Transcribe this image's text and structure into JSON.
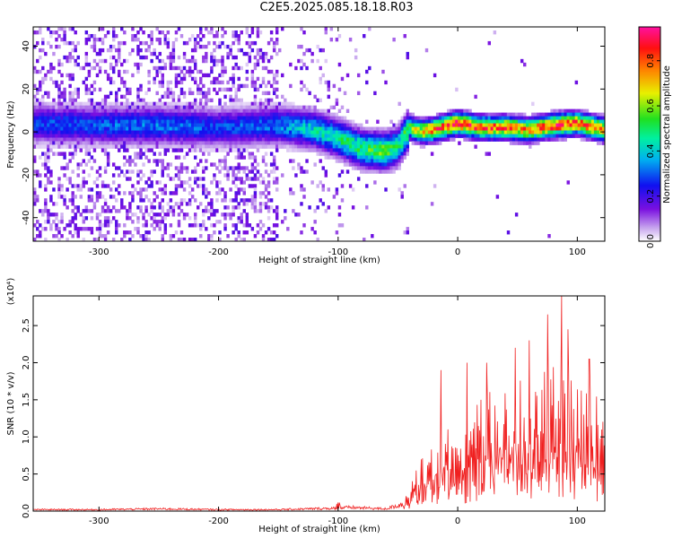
{
  "figure": {
    "title": "C2E5.2025.085.18.18.R03"
  },
  "colors": {
    "snr_line": "#f02020",
    "axis": "#000000"
  },
  "chart_data": [
    {
      "type": "heatmap",
      "xlabel": "Height of straight line (km)",
      "ylabel": "Frequency (Hz)",
      "xlim": [
        -355,
        123
      ],
      "ylim": [
        -51,
        49
      ],
      "xticks": [
        -300,
        -200,
        -100,
        0,
        100
      ],
      "yticks": [
        -40,
        -20,
        0,
        20,
        40
      ],
      "colorbar": {
        "label": "Normalized spectral amplitude",
        "range": [
          0,
          0.95
        ],
        "ticks": [
          0.0,
          0.2,
          0.4,
          0.6,
          0.8
        ],
        "colormap": "rainbow (white-purple-blue-cyan-green-yellow-red-magenta)"
      },
      "ridge": {
        "x": [
          -355,
          -300,
          -250,
          -200,
          -150,
          -120,
          -100,
          -80,
          -60,
          -50,
          -40,
          -30,
          -20,
          0,
          20,
          40,
          60,
          80,
          100,
          123
        ],
        "frequency": [
          4,
          3,
          3,
          2,
          3,
          1,
          -3,
          -8,
          -9,
          -7,
          2,
          0,
          1,
          4,
          2,
          2,
          1,
          3,
          4,
          1
        ],
        "amplitude": [
          0.3,
          0.32,
          0.35,
          0.3,
          0.35,
          0.45,
          0.5,
          0.55,
          0.6,
          0.5,
          0.6,
          0.75,
          0.85,
          0.9,
          0.85,
          0.85,
          0.8,
          0.9,
          0.85,
          0.8
        ]
      }
    },
    {
      "type": "line",
      "xlabel": "Height of straight line (km)",
      "ylabel": "SNR (10 * v/v)",
      "y_multiplier": "(x10⁴)",
      "xlim": [
        -355,
        123
      ],
      "ylim": [
        0,
        2.9
      ],
      "xticks": [
        -300,
        -200,
        -100,
        0,
        100
      ],
      "yticks": [
        0.0,
        0.5,
        1.0,
        1.5,
        2.0,
        2.5
      ],
      "series": [
        {
          "x": [
            -355,
            -300,
            -250,
            -200,
            -150,
            -100,
            -90,
            -60,
            -45,
            -40,
            -30,
            -20,
            -10,
            0,
            10,
            20,
            30,
            40,
            50,
            60,
            70,
            80,
            90,
            100,
            110,
            123
          ],
          "y": [
            0.02,
            0.02,
            0.03,
            0.02,
            0.02,
            0.04,
            0.05,
            0.03,
            0.1,
            0.3,
            0.55,
            0.7,
            0.9,
            0.75,
            1.1,
            1.2,
            1.25,
            1.3,
            1.35,
            1.4,
            1.45,
            1.5,
            1.55,
            1.4,
            1.3,
            1.15
          ],
          "peaks": [
            {
              "x": -14,
              "y": 1.9
            },
            {
              "x": 8,
              "y": 2.0
            },
            {
              "x": 24,
              "y": 2.0
            },
            {
              "x": 48,
              "y": 2.2
            },
            {
              "x": 60,
              "y": 2.3
            },
            {
              "x": 75,
              "y": 2.65
            },
            {
              "x": 87,
              "y": 2.9
            },
            {
              "x": 92,
              "y": 2.45
            },
            {
              "x": 110,
              "y": 2.05
            }
          ]
        }
      ]
    }
  ]
}
